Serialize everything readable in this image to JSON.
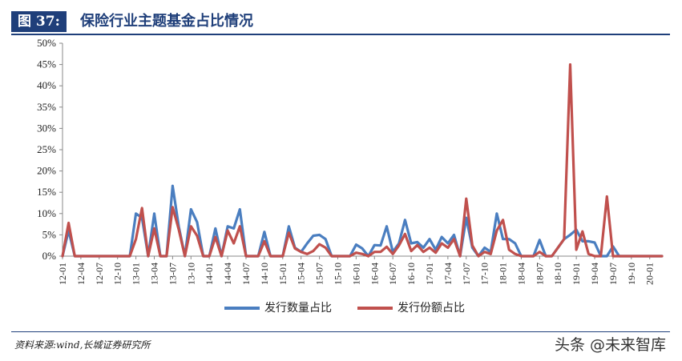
{
  "header": {
    "fig_label": "图 37:",
    "title": "保险行业主题基金占比情况"
  },
  "footer": {
    "source": "资料来源:wind,长城证券研究所",
    "watermark": "头条 @未来智库"
  },
  "chart_data": {
    "type": "line",
    "title": "保险行业主题基金占比情况",
    "xlabel": "",
    "ylabel": "",
    "ylim": [
      0,
      50
    ],
    "yticks": [
      "0%",
      "5%",
      "10%",
      "15%",
      "20%",
      "25%",
      "30%",
      "35%",
      "40%",
      "45%",
      "50%"
    ],
    "xticks": [
      "12-01",
      "12-04",
      "12-07",
      "12-10",
      "13-01",
      "13-04",
      "13-07",
      "13-10",
      "14-01",
      "14-04",
      "14-07",
      "14-10",
      "15-01",
      "15-04",
      "15-07",
      "15-10",
      "16-01",
      "16-04",
      "16-07",
      "16-10",
      "17-01",
      "17-04",
      "17-07",
      "17-10",
      "18-01",
      "18-04",
      "18-07",
      "18-10",
      "19-01",
      "19-04",
      "19-07",
      "19-10",
      "20-01"
    ],
    "grid": false,
    "legend_position": "bottom",
    "x": [
      "12-01",
      "12-02",
      "12-03",
      "12-04",
      "12-05",
      "12-06",
      "12-07",
      "12-08",
      "12-09",
      "12-10",
      "12-11",
      "12-12",
      "13-01",
      "13-02",
      "13-03",
      "13-04",
      "13-05",
      "13-06",
      "13-07",
      "13-08",
      "13-09",
      "13-10",
      "13-11",
      "13-12",
      "14-01",
      "14-02",
      "14-03",
      "14-04",
      "14-05",
      "14-06",
      "14-07",
      "14-08",
      "14-09",
      "14-10",
      "14-11",
      "14-12",
      "15-01",
      "15-02",
      "15-03",
      "15-04",
      "15-05",
      "15-06",
      "15-07",
      "15-08",
      "15-09",
      "15-10",
      "15-11",
      "15-12",
      "16-01",
      "16-02",
      "16-03",
      "16-04",
      "16-05",
      "16-06",
      "16-07",
      "16-08",
      "16-09",
      "16-10",
      "16-11",
      "16-12",
      "17-01",
      "17-02",
      "17-03",
      "17-04",
      "17-05",
      "17-06",
      "17-07",
      "17-08",
      "17-09",
      "17-10",
      "17-11",
      "17-12",
      "18-01",
      "18-02",
      "18-03",
      "18-04",
      "18-05",
      "18-06",
      "18-07",
      "18-08",
      "18-09",
      "18-10",
      "18-11",
      "18-12",
      "19-01",
      "19-02",
      "19-03",
      "19-04",
      "19-05",
      "19-06",
      "19-07",
      "19-08",
      "19-09",
      "19-10",
      "19-11",
      "19-12",
      "20-01",
      "20-02",
      "20-03"
    ],
    "series": [
      {
        "name": "发行数量占比",
        "color": "#4a7ec0",
        "values": [
          0,
          6,
          0,
          0,
          0,
          0,
          0,
          0,
          0,
          0,
          0,
          0,
          10,
          9,
          0,
          10,
          0,
          0,
          16.5,
          7,
          0,
          11,
          8,
          0,
          0,
          6.5,
          0,
          7,
          6.5,
          11,
          0,
          0,
          0,
          5.7,
          0,
          0,
          0,
          7,
          2,
          1,
          3,
          4.8,
          5,
          4,
          0,
          0,
          0,
          0,
          2.7,
          1.8,
          0,
          2.6,
          2.5,
          7,
          1,
          3,
          8.5,
          3,
          3.3,
          2,
          4,
          1.5,
          4.5,
          3,
          5,
          0,
          9,
          2,
          0,
          2,
          1,
          10,
          4,
          4,
          3,
          0,
          0,
          0,
          3.8,
          0,
          0,
          2,
          4,
          5,
          6.2,
          3.5,
          3.5,
          3.2,
          0,
          0,
          2.3,
          0,
          0,
          0,
          0,
          0,
          0,
          0,
          0
        ]
      },
      {
        "name": "发行份额占比",
        "color": "#c0504d",
        "values": [
          0,
          7.8,
          0,
          0,
          0,
          0,
          0,
          0,
          0,
          0,
          0,
          0,
          4,
          11.3,
          0,
          6.5,
          0,
          0,
          11.5,
          6.3,
          0,
          7,
          4.8,
          0,
          0,
          4.5,
          0,
          6,
          3,
          7,
          0,
          0,
          0,
          3.5,
          0,
          0,
          0,
          5.5,
          1.8,
          1,
          0.5,
          1.2,
          2.8,
          2,
          0,
          0,
          0,
          0,
          0.8,
          0.5,
          0,
          1,
          1,
          2.2,
          0.5,
          2.5,
          5.2,
          1.2,
          2.6,
          1,
          2,
          0.8,
          3,
          2,
          4,
          0,
          13.5,
          2.5,
          0,
          1,
          0.5,
          6,
          8.5,
          1.5,
          0.5,
          0,
          0,
          0,
          1,
          0,
          0,
          2,
          4,
          45,
          1.5,
          5.8,
          0.5,
          0,
          0,
          14,
          0,
          0,
          0,
          0,
          0,
          0,
          0,
          0,
          0
        ]
      }
    ]
  }
}
